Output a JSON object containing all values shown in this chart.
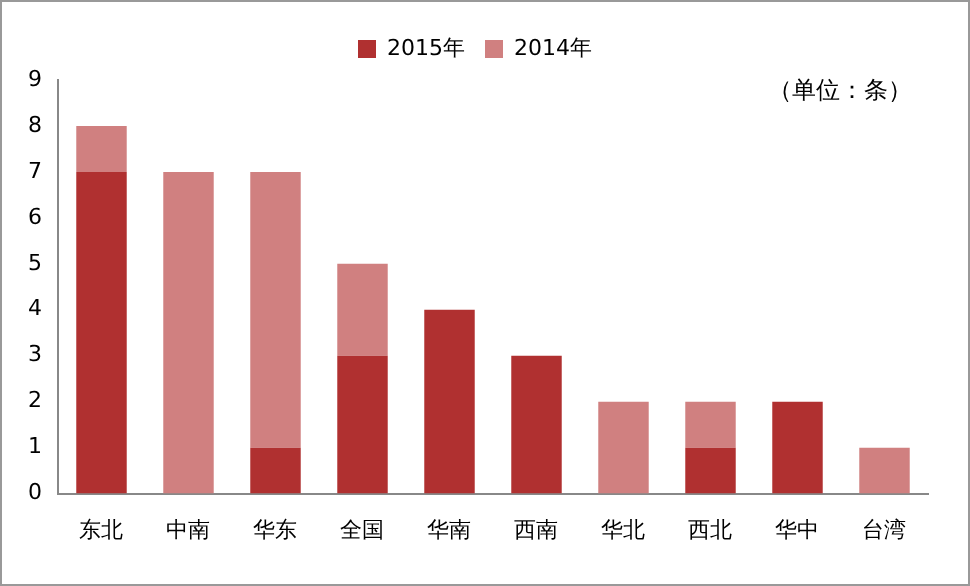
{
  "chart_data": {
    "type": "bar",
    "stacked": true,
    "categories": [
      "东北",
      "中南",
      "华东",
      "全国",
      "华南",
      "西南",
      "华北",
      "西北",
      "华中",
      "台湾"
    ],
    "series": [
      {
        "name": "2015年",
        "color": "#b03030",
        "values": [
          7,
          0,
          1,
          3,
          4,
          3,
          0,
          1,
          2,
          0
        ]
      },
      {
        "name": "2014年",
        "color": "#d08080",
        "values": [
          1,
          7,
          6,
          2,
          0,
          0,
          2,
          1,
          0,
          1
        ]
      }
    ],
    "ylim": [
      0,
      9
    ],
    "yticks": [
      0,
      1,
      2,
      3,
      4,
      5,
      6,
      7,
      8,
      9
    ],
    "grid": false,
    "legend": "top",
    "annotations": [
      "（单位：条）"
    ]
  }
}
